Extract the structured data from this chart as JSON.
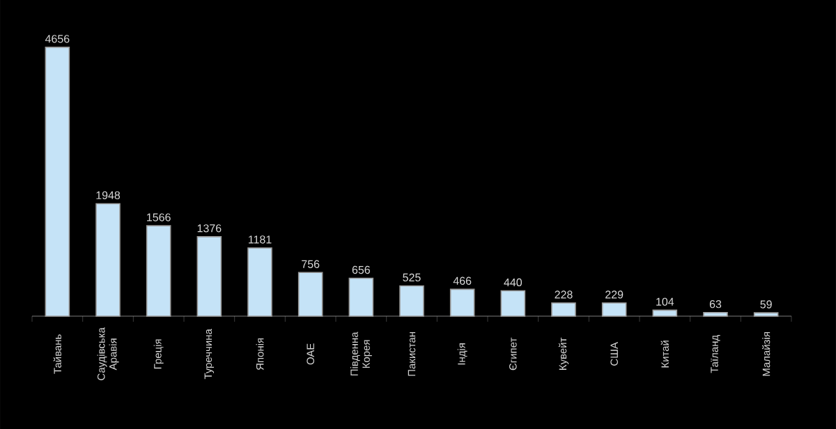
{
  "chart_data": {
    "type": "bar",
    "categories": [
      "Тайвань",
      "Саудівська Аравія",
      "Греція",
      "Туреччина",
      "Японія",
      "ОАЕ",
      "Південна Корея",
      "Пакистан",
      "Індія",
      "Єгипет",
      "Кувейт",
      "США",
      "Китай",
      "Таїланд",
      "Малайзія"
    ],
    "values": [
      4656,
      1948,
      1566,
      1376,
      1181,
      756,
      656,
      525,
      466,
      440,
      228,
      229,
      104,
      63,
      59
    ],
    "color": "#c5e3f7",
    "data_labels": true
  }
}
